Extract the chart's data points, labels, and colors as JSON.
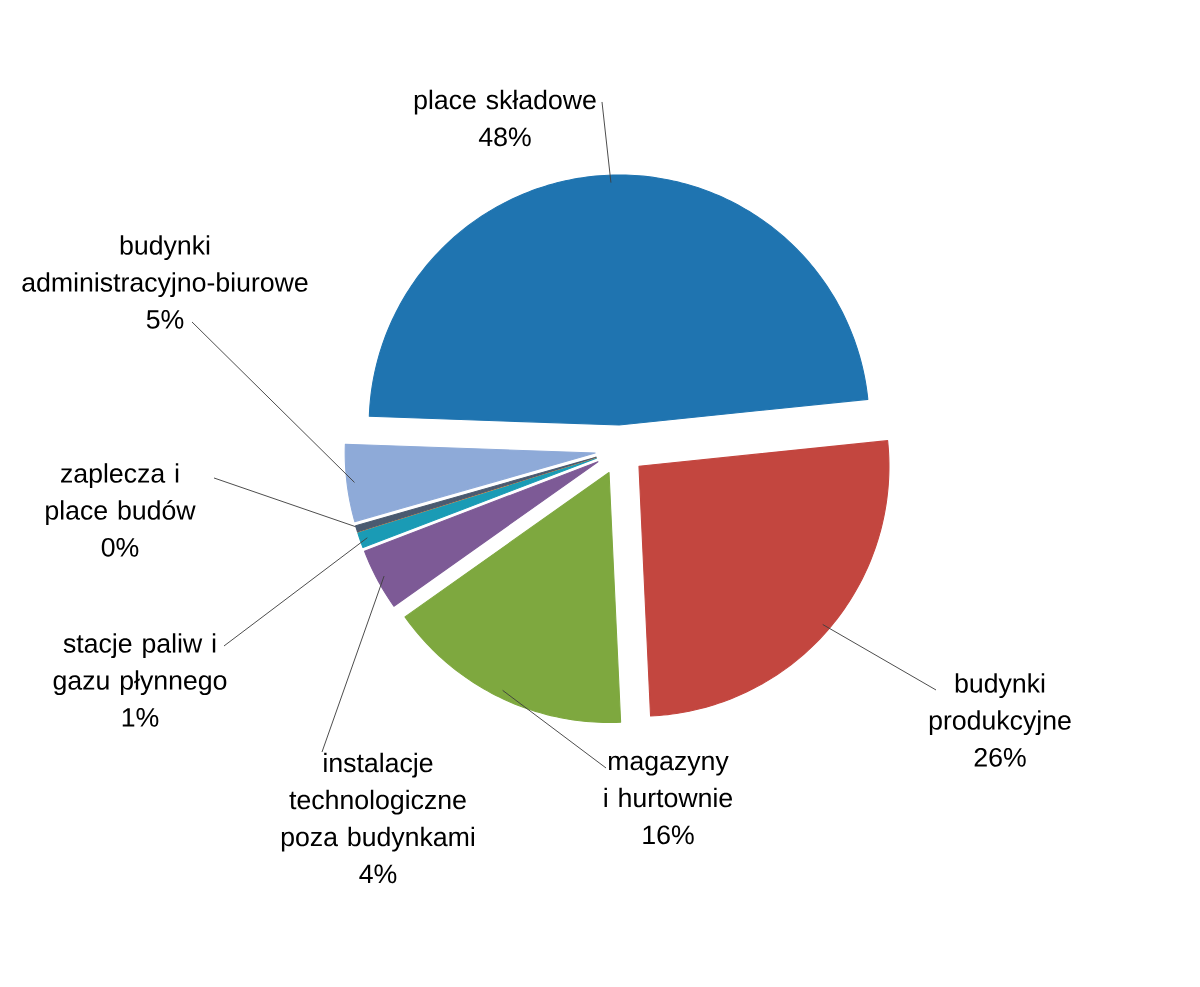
{
  "chart_data": {
    "type": "pie",
    "categories": [
      "place składowe",
      "budynki produkcyjne",
      "magazyny i hurtownie",
      "instalacje technologiczne poza budynkami",
      "stacje paliw i gazu płynnego",
      "zaplecza i place budów",
      null,
      "budynki administracyjno-biurowe"
    ],
    "values": [
      48,
      26,
      16,
      4,
      1,
      0,
      0.4,
      5
    ],
    "value_labels": [
      "48%",
      "26%",
      "16%",
      "4%",
      "1%",
      "0%",
      null,
      "5%"
    ],
    "colors": [
      "#1f74b0",
      "#c3463f",
      "#7ea83f",
      "#7d5a96",
      "#1a9bb5",
      "#f28a2e",
      "#4a5a70",
      "#8eaad8"
    ]
  }
}
